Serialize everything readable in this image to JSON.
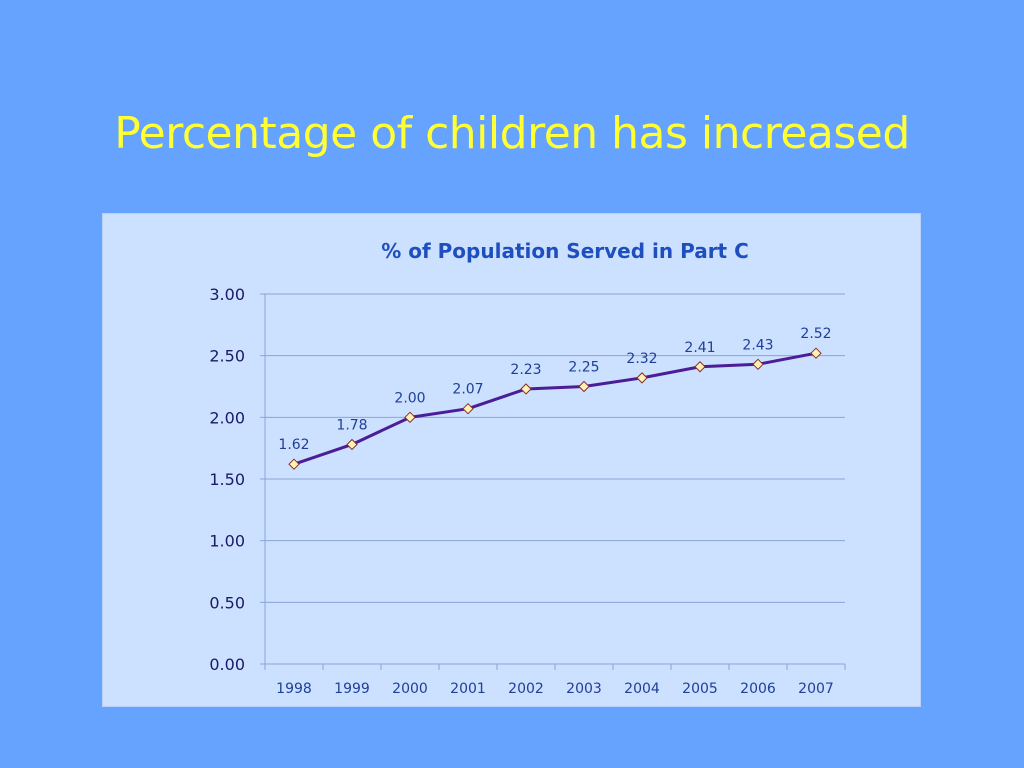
{
  "slide": {
    "title": "Percentage of children has increased"
  },
  "colors": {
    "background": "#66a3ff",
    "title": "#ffff33",
    "panel": "#cce0ff",
    "chart_title": "#1f4fbf",
    "line": "#4b1d96",
    "marker_fill": "#fff2b3",
    "marker_stroke": "#8a2b2b",
    "gridline": "#8aa6d6",
    "label": "#1f3f99"
  },
  "chart_data": {
    "type": "line",
    "title": "% of Population Served in Part C",
    "xlabel": "",
    "ylabel": "",
    "categories": [
      "1998",
      "1999",
      "2000",
      "2001",
      "2002",
      "2003",
      "2004",
      "2005",
      "2006",
      "2007"
    ],
    "series": [
      {
        "values": [
          1.62,
          1.78,
          2.0,
          2.07,
          2.23,
          2.25,
          2.32,
          2.41,
          2.43,
          2.52
        ],
        "data_labels": [
          "1.62",
          "1.78",
          "2.00",
          "2.07",
          "2.23",
          "2.25",
          "2.32",
          "2.41",
          "2.43",
          "2.52"
        ]
      }
    ],
    "yticks": [
      "0.00",
      "0.50",
      "1.00",
      "1.50",
      "2.00",
      "2.50",
      "3.00"
    ],
    "ylim": [
      0,
      3
    ],
    "grid": true,
    "legend": "none"
  }
}
